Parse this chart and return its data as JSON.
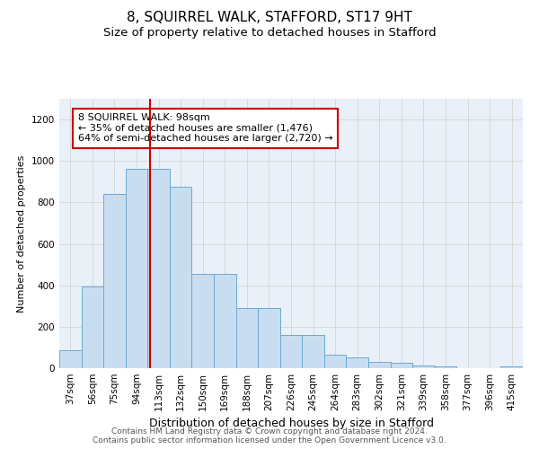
{
  "title": "8, SQUIRREL WALK, STAFFORD, ST17 9HT",
  "subtitle": "Size of property relative to detached houses in Stafford",
  "xlabel": "Distribution of detached houses by size in Stafford",
  "ylabel": "Number of detached properties",
  "categories": [
    "37sqm",
    "56sqm",
    "75sqm",
    "94sqm",
    "113sqm",
    "132sqm",
    "150sqm",
    "169sqm",
    "188sqm",
    "207sqm",
    "226sqm",
    "245sqm",
    "264sqm",
    "283sqm",
    "302sqm",
    "321sqm",
    "339sqm",
    "358sqm",
    "377sqm",
    "396sqm",
    "415sqm"
  ],
  "values": [
    85,
    395,
    840,
    960,
    960,
    875,
    455,
    455,
    290,
    290,
    160,
    160,
    65,
    50,
    30,
    25,
    15,
    8,
    2,
    2,
    8
  ],
  "bar_color": "#c9ddf0",
  "bar_edge_color": "#6aaad4",
  "red_line_x": 3.62,
  "annotation_text": "8 SQUIRREL WALK: 98sqm\n← 35% of detached houses are smaller (1,476)\n64% of semi-detached houses are larger (2,720) →",
  "annotation_box_color": "#ffffff",
  "annotation_box_edge": "#cc0000",
  "red_line_color": "#cc0000",
  "ylim": [
    0,
    1300
  ],
  "yticks": [
    0,
    200,
    400,
    600,
    800,
    1000,
    1200
  ],
  "grid_color": "#d5d5d5",
  "background_color": "#ffffff",
  "plot_bg_color": "#eaf0f8",
  "footer_line1": "Contains HM Land Registry data © Crown copyright and database right 2024.",
  "footer_line2": "Contains public sector information licensed under the Open Government Licence v3.0.",
  "title_fontsize": 11,
  "subtitle_fontsize": 9.5,
  "xlabel_fontsize": 9,
  "ylabel_fontsize": 8,
  "tick_fontsize": 7.5,
  "annotation_fontsize": 8,
  "footer_fontsize": 6.5
}
